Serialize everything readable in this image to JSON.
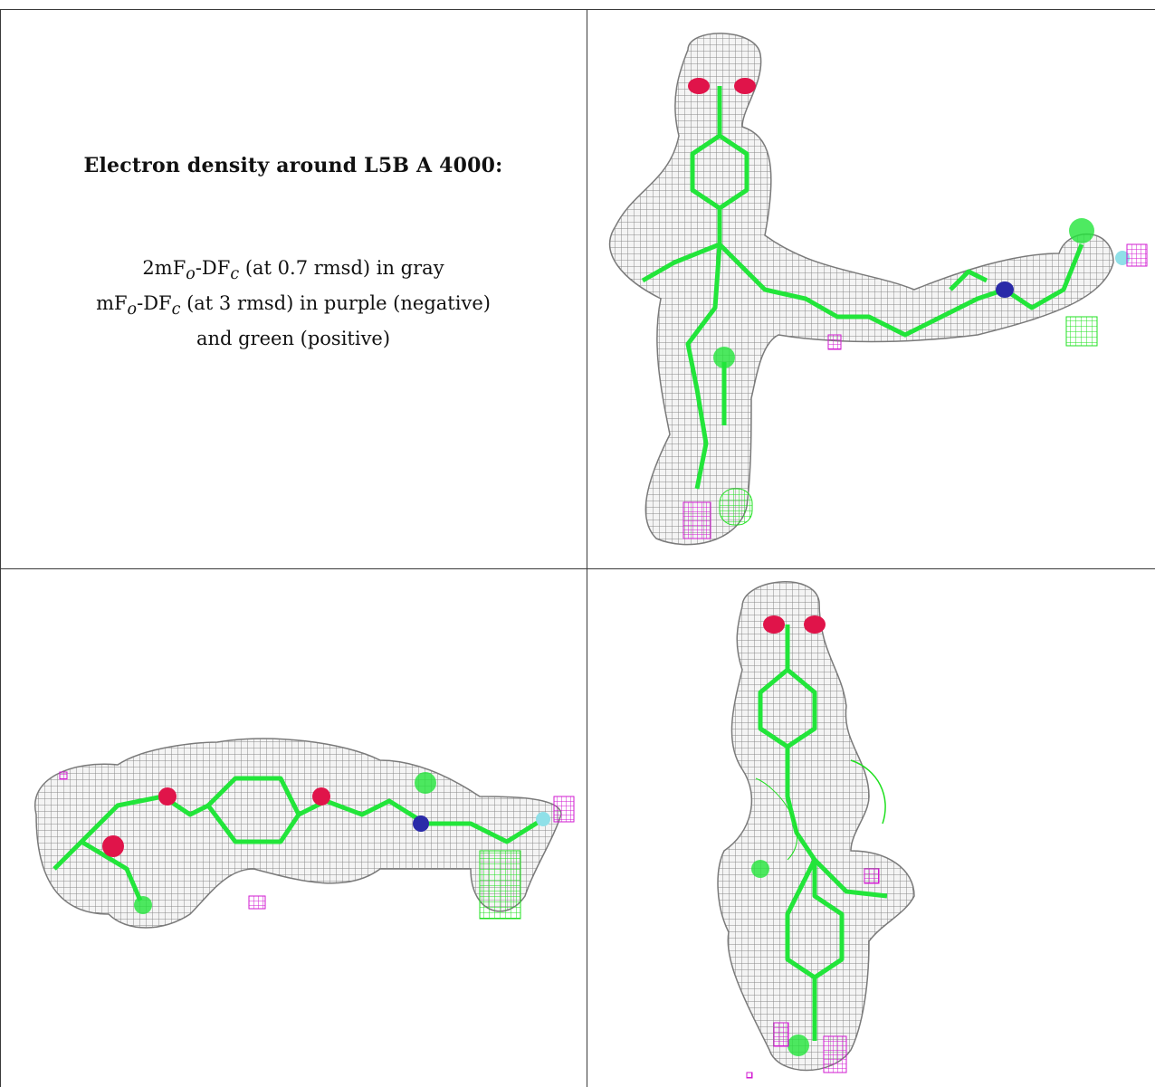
{
  "panel": {
    "title": "Electron density around L5B A 4000:",
    "legend": {
      "line1": {
        "a": "2mF",
        "b": "o",
        "c": "-DF",
        "d": "c",
        "e": " (at 0.7 rmsd) in gray"
      },
      "line2": {
        "a": "mF",
        "b": "o",
        "c": "-DF",
        "d": "c",
        "e": " (at 3 rmsd) in purple (negative)"
      },
      "line3": "and green (positive)"
    }
  },
  "colors": {
    "mesh": "#8a8a8a",
    "model": "#22e53a",
    "oxygen": "#e0144a",
    "nitrogen": "#2a2aa8",
    "halogen": "#8fe0e8",
    "negative": "#d21ad2",
    "positive": "#1fe01f"
  }
}
